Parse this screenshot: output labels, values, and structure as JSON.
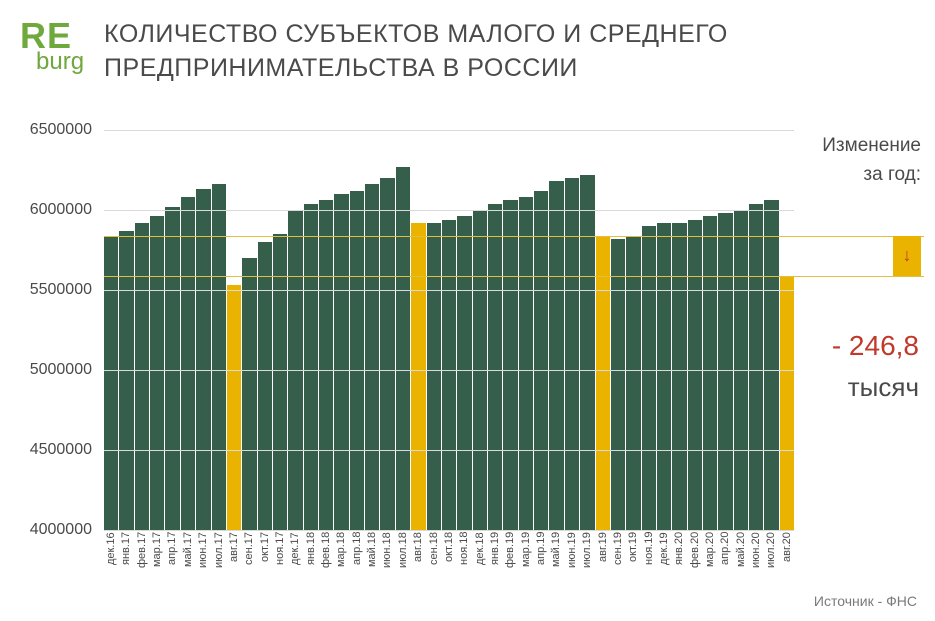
{
  "logo": {
    "top": "RE",
    "bottom": "burg",
    "color": "#6fa83d"
  },
  "title": "КОЛИЧЕСТВО СУБЪЕКТОВ МАЛОГО И СРЕДНЕГО ПРЕДПРИНИМАТЕЛЬСТВА В РОССИИ",
  "side": {
    "label_line1": "Изменение",
    "label_line2": "за год:",
    "change_value": "- 246,8",
    "change_unit": "тысяч"
  },
  "source": "Источник - ФНС",
  "chart": {
    "type": "bar",
    "ylim": [
      4000000,
      6500000
    ],
    "yticks": [
      4000000,
      4500000,
      5000000,
      5500000,
      6000000,
      6500000
    ],
    "bar_color_normal": "#355e4b",
    "bar_color_highlight": "#e9b300",
    "grid_color": "#d9d9d9",
    "reference_line_color": "#e0c040",
    "reference_lines": [
      5840000,
      5590000
    ],
    "categories": [
      "дек.16",
      "янв.17",
      "фев.17",
      "мар.17",
      "апр.17",
      "май.17",
      "июн.17",
      "июл.17",
      "авг.17",
      "сен.17",
      "окт.17",
      "ноя.17",
      "дек.17",
      "янв.18",
      "фев.18",
      "мар.18",
      "апр.18",
      "май.18",
      "июн.18",
      "июл.18",
      "авг.18",
      "сен.18",
      "окт.18",
      "ноя.18",
      "дек.18",
      "янв.19",
      "фев.19",
      "мар.19",
      "апр.19",
      "май.19",
      "июн.19",
      "июл.19",
      "авг.19",
      "сен.19",
      "окт.19",
      "ноя.19",
      "дек.19",
      "янв.20",
      "фев.20",
      "мар.20",
      "апр.20",
      "май.20",
      "июн.20",
      "июл.20",
      "авг.20"
    ],
    "values": [
      5840000,
      5870000,
      5920000,
      5960000,
      6020000,
      6080000,
      6130000,
      6160000,
      5530000,
      5700000,
      5800000,
      5850000,
      6000000,
      6040000,
      6060000,
      6100000,
      6120000,
      6160000,
      6200000,
      6270000,
      5920000,
      5920000,
      5940000,
      5960000,
      6000000,
      6040000,
      6060000,
      6080000,
      6120000,
      6180000,
      6200000,
      6220000,
      5840000,
      5820000,
      5840000,
      5900000,
      5920000,
      5920000,
      5940000,
      5960000,
      5980000,
      6000000,
      6040000,
      6060000,
      5590000
    ],
    "highlight_indices": [
      8,
      20,
      32,
      44
    ]
  }
}
